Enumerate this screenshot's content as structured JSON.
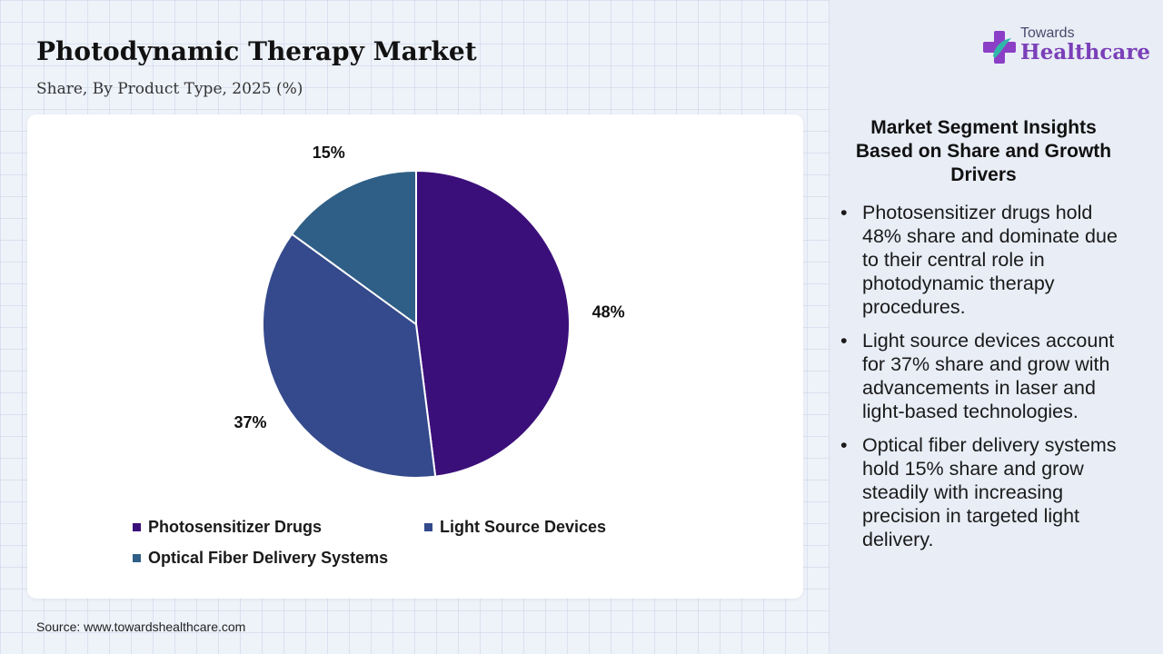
{
  "header": {
    "title": "Photodynamic Therapy Market",
    "subtitle": "Share, By Product Type, 2025 (%)"
  },
  "chart_data": {
    "type": "pie",
    "categories": [
      "Photosensitizer Drugs",
      "Light Source Devices",
      "Optical Fiber Delivery Systems"
    ],
    "values": [
      48,
      37,
      15
    ],
    "value_labels": [
      "48%",
      "37%",
      "15%"
    ],
    "colors": [
      "#3b0f7a",
      "#354a8c",
      "#2f5f86"
    ],
    "start_angle": "12 o'clock",
    "direction": "clockwise",
    "legend_position": "bottom"
  },
  "source": "Source: www.towardshealthcare.com",
  "logo": {
    "line1": "Towards",
    "line2": "Healthcare"
  },
  "side_panel": {
    "heading": "Market Segment Insights Based on Share and Growth Drivers",
    "bullet_symbol": "•",
    "insights": [
      "Photosensitizer drugs hold 48% share and dominate due to their central role in photodynamic therapy procedures.",
      "Light source devices account for 37% share and grow with advancements in laser and light-based technologies.",
      "Optical fiber delivery systems hold 15% share and grow steadily with increasing precision in targeted light delivery."
    ]
  }
}
